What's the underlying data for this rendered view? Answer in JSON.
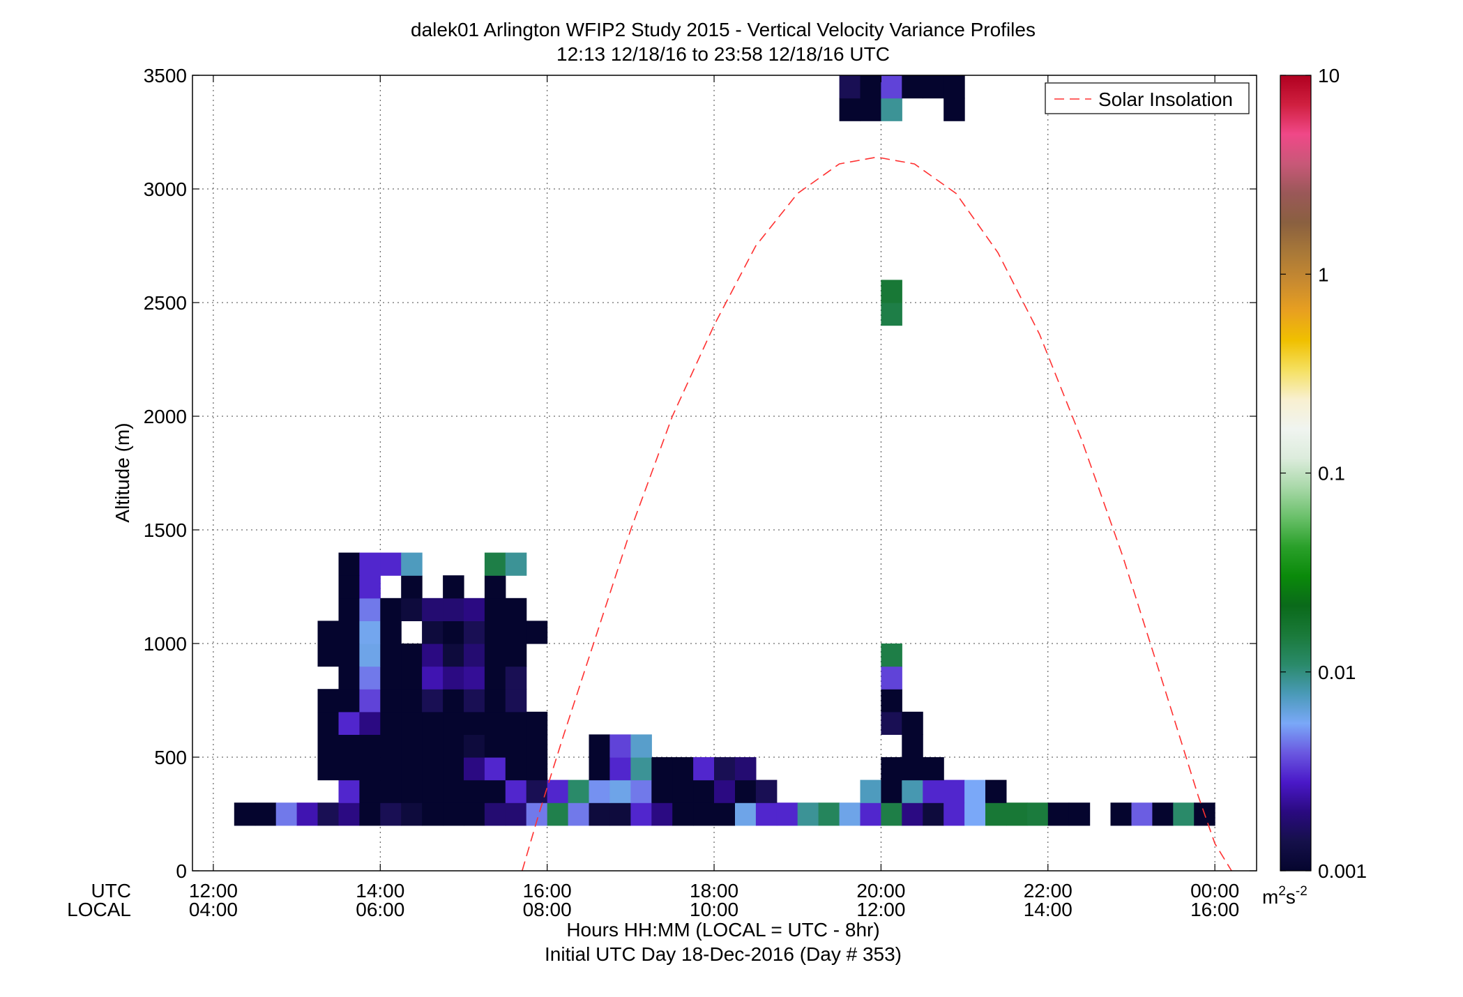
{
  "chart_data": {
    "type": "heatmap",
    "title": "dalek01 Arlington WFIP2 Study 2015 - Vertical Velocity Variance Profiles",
    "subtitle": "12:13 12/18/16 to 23:58 12/18/16  UTC",
    "ylabel": "Altitude (m)",
    "xlabel": "Hours HH:MM  (LOCAL = UTC - 8hr)",
    "xlabel2": "Initial UTC Day 18-Dec-2016 (Day # 353)",
    "utc_row_label": "UTC",
    "local_row_label": "LOCAL",
    "x_unit": "hours UTC since 00:00 18-Dec-2016",
    "xlim": [
      11.75,
      24.5
    ],
    "ylim": [
      0,
      3500
    ],
    "grid": true,
    "xticks": [
      {
        "x": 12,
        "utc": "12:00",
        "local": "04:00"
      },
      {
        "x": 14,
        "utc": "14:00",
        "local": "06:00"
      },
      {
        "x": 16,
        "utc": "16:00",
        "local": "08:00"
      },
      {
        "x": 18,
        "utc": "18:00",
        "local": "10:00"
      },
      {
        "x": 20,
        "utc": "20:00",
        "local": "12:00"
      },
      {
        "x": 22,
        "utc": "22:00",
        "local": "14:00"
      },
      {
        "x": 24,
        "utc": "00:00",
        "local": "16:00"
      }
    ],
    "yticks": [
      {
        "y": 0,
        "label": "0"
      },
      {
        "y": 500,
        "label": "500"
      },
      {
        "y": 1000,
        "label": "1000"
      },
      {
        "y": 1500,
        "label": "1500"
      },
      {
        "y": 2000,
        "label": "2000"
      },
      {
        "y": 2500,
        "label": "2500"
      },
      {
        "y": 3000,
        "label": "3000"
      },
      {
        "y": 3500,
        "label": "3500"
      }
    ],
    "colorbar": {
      "scale": "log",
      "range": [
        0.001,
        10
      ],
      "ticks": [
        {
          "value": 0.001,
          "label": "0.001"
        },
        {
          "value": 0.01,
          "label": "0.01"
        },
        {
          "value": 0.1,
          "label": "0.1"
        },
        {
          "value": 1,
          "label": "1"
        },
        {
          "value": 10,
          "label": "10"
        }
      ],
      "unit_base": "m",
      "unit_exp1": "2",
      "unit_mid": "s",
      "unit_exp2": "-2",
      "stops": [
        "#05052e",
        "#15104a",
        "#2a0a80",
        "#4a18c8",
        "#6a58e0",
        "#7aa8f8",
        "#4a9ab8",
        "#2a8a6a",
        "#1a7a3a",
        "#0a6a1a",
        "#0a8a0a",
        "#2aa02a",
        "#6ac06a",
        "#a8d8a8",
        "#dcecdc",
        "#f0f4f0",
        "#f8f0d0",
        "#f5e060",
        "#f0c000",
        "#e8a020",
        "#c88a30",
        "#a87838",
        "#8a6040",
        "#9a5858",
        "#c85878",
        "#f04888",
        "#d02040",
        "#b00020"
      ]
    },
    "legend": {
      "position": "top-right",
      "label": "Solar Insolation",
      "color": "#ff3030",
      "style": "dashed"
    },
    "solar_insolation_curve": {
      "peak_time_utc": 19.95,
      "peak_altitude_m": 3140,
      "x": [
        15.7,
        15.9,
        16.2,
        16.6,
        17.0,
        17.5,
        18.0,
        18.5,
        19.0,
        19.5,
        19.95,
        20.4,
        20.9,
        21.4,
        21.9,
        22.4,
        22.9,
        23.4,
        23.8,
        24.0,
        24.2
      ],
      "y": [
        0,
        250,
        600,
        1050,
        1500,
        2000,
        2400,
        2750,
        2980,
        3110,
        3140,
        3110,
        2980,
        2720,
        2360,
        1900,
        1380,
        800,
        330,
        120,
        0
      ]
    },
    "cells": {
      "x_step_hours": 0.25,
      "y_step_m": 100,
      "note_units": "each cell: time UTC (h), altitude bottom (m), variance (m2 s-2)",
      "data": [
        [
          12.25,
          200,
          0.001
        ],
        [
          12.5,
          200,
          0.001
        ],
        [
          12.75,
          200,
          0.0045
        ],
        [
          13.0,
          200,
          0.0025
        ],
        [
          13.25,
          200,
          0.0015
        ],
        [
          13.5,
          200,
          0.002
        ],
        [
          13.75,
          200,
          0.001
        ],
        [
          14.0,
          200,
          0.0015
        ],
        [
          14.25,
          200,
          0.0012
        ],
        [
          14.5,
          200,
          0.001
        ],
        [
          14.75,
          200,
          0.001
        ],
        [
          15.0,
          200,
          0.001
        ],
        [
          15.25,
          200,
          0.0018
        ],
        [
          15.5,
          200,
          0.0018
        ],
        [
          15.75,
          200,
          0.0045
        ],
        [
          16.0,
          200,
          0.0135
        ],
        [
          16.25,
          200,
          0.0045
        ],
        [
          16.5,
          200,
          0.0012
        ],
        [
          16.75,
          200,
          0.0012
        ],
        [
          17.0,
          200,
          0.003
        ],
        [
          17.25,
          200,
          0.002
        ],
        [
          17.5,
          200,
          0.001
        ],
        [
          17.75,
          200,
          0.001
        ],
        [
          18.0,
          200,
          0.001
        ],
        [
          18.25,
          200,
          0.006
        ],
        [
          18.5,
          200,
          0.003
        ],
        [
          18.75,
          200,
          0.003
        ],
        [
          19.0,
          200,
          0.009
        ],
        [
          19.25,
          200,
          0.012
        ],
        [
          19.5,
          200,
          0.006
        ],
        [
          19.75,
          200,
          0.003
        ],
        [
          20.0,
          200,
          0.014
        ],
        [
          20.25,
          200,
          0.002
        ],
        [
          20.5,
          200,
          0.0012
        ],
        [
          20.75,
          200,
          0.003
        ],
        [
          21.0,
          200,
          0.0055
        ],
        [
          21.25,
          200,
          0.016
        ],
        [
          21.5,
          200,
          0.016
        ],
        [
          21.75,
          200,
          0.015
        ],
        [
          22.0,
          200,
          0.001
        ],
        [
          22.25,
          200,
          0.001
        ],
        [
          22.75,
          200,
          0.001
        ],
        [
          23.0,
          200,
          0.004
        ],
        [
          23.25,
          200,
          0.001
        ],
        [
          23.5,
          200,
          0.011
        ],
        [
          23.75,
          200,
          0.001
        ],
        [
          13.5,
          300,
          0.003
        ],
        [
          13.75,
          300,
          0.001
        ],
        [
          14.0,
          300,
          0.001
        ],
        [
          14.25,
          300,
          0.001
        ],
        [
          14.5,
          300,
          0.001
        ],
        [
          14.75,
          300,
          0.001
        ],
        [
          15.0,
          300,
          0.001
        ],
        [
          15.25,
          300,
          0.001
        ],
        [
          15.5,
          300,
          0.003
        ],
        [
          15.75,
          300,
          0.0015
        ],
        [
          16.0,
          300,
          0.003
        ],
        [
          16.25,
          300,
          0.011
        ],
        [
          16.5,
          300,
          0.005
        ],
        [
          16.75,
          300,
          0.006
        ],
        [
          17.0,
          300,
          0.0045
        ],
        [
          17.25,
          300,
          0.001
        ],
        [
          17.5,
          300,
          0.001
        ],
        [
          17.75,
          300,
          0.001
        ],
        [
          18.0,
          300,
          0.002
        ],
        [
          18.25,
          300,
          0.001
        ],
        [
          18.5,
          300,
          0.0015
        ],
        [
          19.75,
          300,
          0.0075
        ],
        [
          20.0,
          300,
          0.001
        ],
        [
          20.25,
          300,
          0.008
        ],
        [
          20.5,
          300,
          0.003
        ],
        [
          20.75,
          300,
          0.003
        ],
        [
          21.0,
          300,
          0.0055
        ],
        [
          21.25,
          300,
          0.001
        ],
        [
          13.25,
          400,
          0.001
        ],
        [
          13.5,
          400,
          0.001
        ],
        [
          13.75,
          400,
          0.001
        ],
        [
          14.0,
          400,
          0.001
        ],
        [
          14.25,
          400,
          0.001
        ],
        [
          14.5,
          400,
          0.001
        ],
        [
          14.75,
          400,
          0.001
        ],
        [
          15.0,
          400,
          0.002
        ],
        [
          15.25,
          400,
          0.003
        ],
        [
          15.5,
          400,
          0.001
        ],
        [
          15.75,
          400,
          0.001
        ],
        [
          16.5,
          400,
          0.001
        ],
        [
          16.75,
          400,
          0.003
        ],
        [
          17.0,
          400,
          0.009
        ],
        [
          17.25,
          400,
          0.001
        ],
        [
          17.5,
          400,
          0.001
        ],
        [
          17.75,
          400,
          0.003
        ],
        [
          18.0,
          400,
          0.0015
        ],
        [
          18.25,
          400,
          0.0018
        ],
        [
          20.0,
          400,
          0.001
        ],
        [
          20.25,
          400,
          0.001
        ],
        [
          20.5,
          400,
          0.001
        ],
        [
          13.25,
          500,
          0.001
        ],
        [
          13.5,
          500,
          0.001
        ],
        [
          13.75,
          500,
          0.001
        ],
        [
          14.0,
          500,
          0.001
        ],
        [
          14.25,
          500,
          0.001
        ],
        [
          14.5,
          500,
          0.001
        ],
        [
          14.75,
          500,
          0.001
        ],
        [
          15.0,
          500,
          0.0012
        ],
        [
          15.25,
          500,
          0.001
        ],
        [
          15.5,
          500,
          0.001
        ],
        [
          15.75,
          500,
          0.001
        ],
        [
          16.5,
          500,
          0.001
        ],
        [
          16.75,
          500,
          0.0035
        ],
        [
          17.0,
          500,
          0.007
        ],
        [
          20.25,
          500,
          0.001
        ],
        [
          13.25,
          600,
          0.001
        ],
        [
          13.5,
          600,
          0.003
        ],
        [
          13.75,
          600,
          0.002
        ],
        [
          14.0,
          600,
          0.001
        ],
        [
          14.25,
          600,
          0.001
        ],
        [
          14.5,
          600,
          0.001
        ],
        [
          14.75,
          600,
          0.001
        ],
        [
          15.0,
          600,
          0.001
        ],
        [
          15.25,
          600,
          0.001
        ],
        [
          15.5,
          600,
          0.001
        ],
        [
          15.75,
          600,
          0.001
        ],
        [
          20.0,
          600,
          0.0015
        ],
        [
          20.25,
          600,
          0.001
        ],
        [
          13.25,
          700,
          0.001
        ],
        [
          13.5,
          700,
          0.001
        ],
        [
          13.75,
          700,
          0.0035
        ],
        [
          14.0,
          700,
          0.001
        ],
        [
          14.25,
          700,
          0.001
        ],
        [
          14.5,
          700,
          0.0015
        ],
        [
          14.75,
          700,
          0.001
        ],
        [
          15.0,
          700,
          0.0015
        ],
        [
          15.25,
          700,
          0.001
        ],
        [
          15.5,
          700,
          0.0015
        ],
        [
          20.0,
          700,
          0.001
        ],
        [
          13.5,
          800,
          0.001
        ],
        [
          13.75,
          800,
          0.0045
        ],
        [
          14.0,
          800,
          0.001
        ],
        [
          14.25,
          800,
          0.001
        ],
        [
          14.5,
          800,
          0.0025
        ],
        [
          14.75,
          800,
          0.002
        ],
        [
          15.0,
          800,
          0.0022
        ],
        [
          15.25,
          800,
          0.001
        ],
        [
          15.5,
          800,
          0.0015
        ],
        [
          20.0,
          800,
          0.0035
        ],
        [
          13.25,
          900,
          0.001
        ],
        [
          13.5,
          900,
          0.001
        ],
        [
          13.75,
          900,
          0.006
        ],
        [
          14.0,
          900,
          0.001
        ],
        [
          14.25,
          900,
          0.001
        ],
        [
          14.5,
          900,
          0.002
        ],
        [
          14.75,
          900,
          0.0012
        ],
        [
          15.0,
          900,
          0.0018
        ],
        [
          15.25,
          900,
          0.001
        ],
        [
          15.5,
          900,
          0.001
        ],
        [
          20.0,
          900,
          0.014
        ],
        [
          13.25,
          1000,
          0.001
        ],
        [
          13.5,
          1000,
          0.001
        ],
        [
          13.75,
          1000,
          0.0058
        ],
        [
          14.0,
          1000,
          0.001
        ],
        [
          14.5,
          1000,
          0.0012
        ],
        [
          14.75,
          1000,
          0.001
        ],
        [
          15.0,
          1000,
          0.0015
        ],
        [
          15.25,
          1000,
          0.001
        ],
        [
          15.5,
          1000,
          0.001
        ],
        [
          15.75,
          1000,
          0.001
        ],
        [
          13.5,
          1100,
          0.001
        ],
        [
          13.75,
          1100,
          0.0045
        ],
        [
          14.0,
          1100,
          0.001
        ],
        [
          14.25,
          1100,
          0.0012
        ],
        [
          14.5,
          1100,
          0.0018
        ],
        [
          14.75,
          1100,
          0.0018
        ],
        [
          15.0,
          1100,
          0.002
        ],
        [
          15.25,
          1100,
          0.001
        ],
        [
          15.5,
          1100,
          0.001
        ],
        [
          13.5,
          1200,
          0.001
        ],
        [
          13.75,
          1200,
          0.003
        ],
        [
          14.25,
          1200,
          0.001
        ],
        [
          14.75,
          1200,
          0.001
        ],
        [
          15.25,
          1200,
          0.001
        ],
        [
          13.5,
          1300,
          0.001
        ],
        [
          13.75,
          1300,
          0.003
        ],
        [
          14.0,
          1300,
          0.003
        ],
        [
          14.25,
          1300,
          0.0075
        ],
        [
          15.25,
          1300,
          0.014
        ],
        [
          15.5,
          1300,
          0.009
        ],
        [
          20.0,
          2400,
          0.014
        ],
        [
          20.0,
          2500,
          0.016
        ],
        [
          19.5,
          3300,
          0.001
        ],
        [
          19.75,
          3300,
          0.001
        ],
        [
          20.0,
          3300,
          0.009
        ],
        [
          20.75,
          3300,
          0.001
        ],
        [
          19.5,
          3400,
          0.0015
        ],
        [
          19.75,
          3400,
          0.001
        ],
        [
          20.0,
          3400,
          0.0035
        ],
        [
          20.25,
          3400,
          0.001
        ],
        [
          20.5,
          3400,
          0.001
        ],
        [
          20.75,
          3400,
          0.001
        ]
      ]
    }
  }
}
